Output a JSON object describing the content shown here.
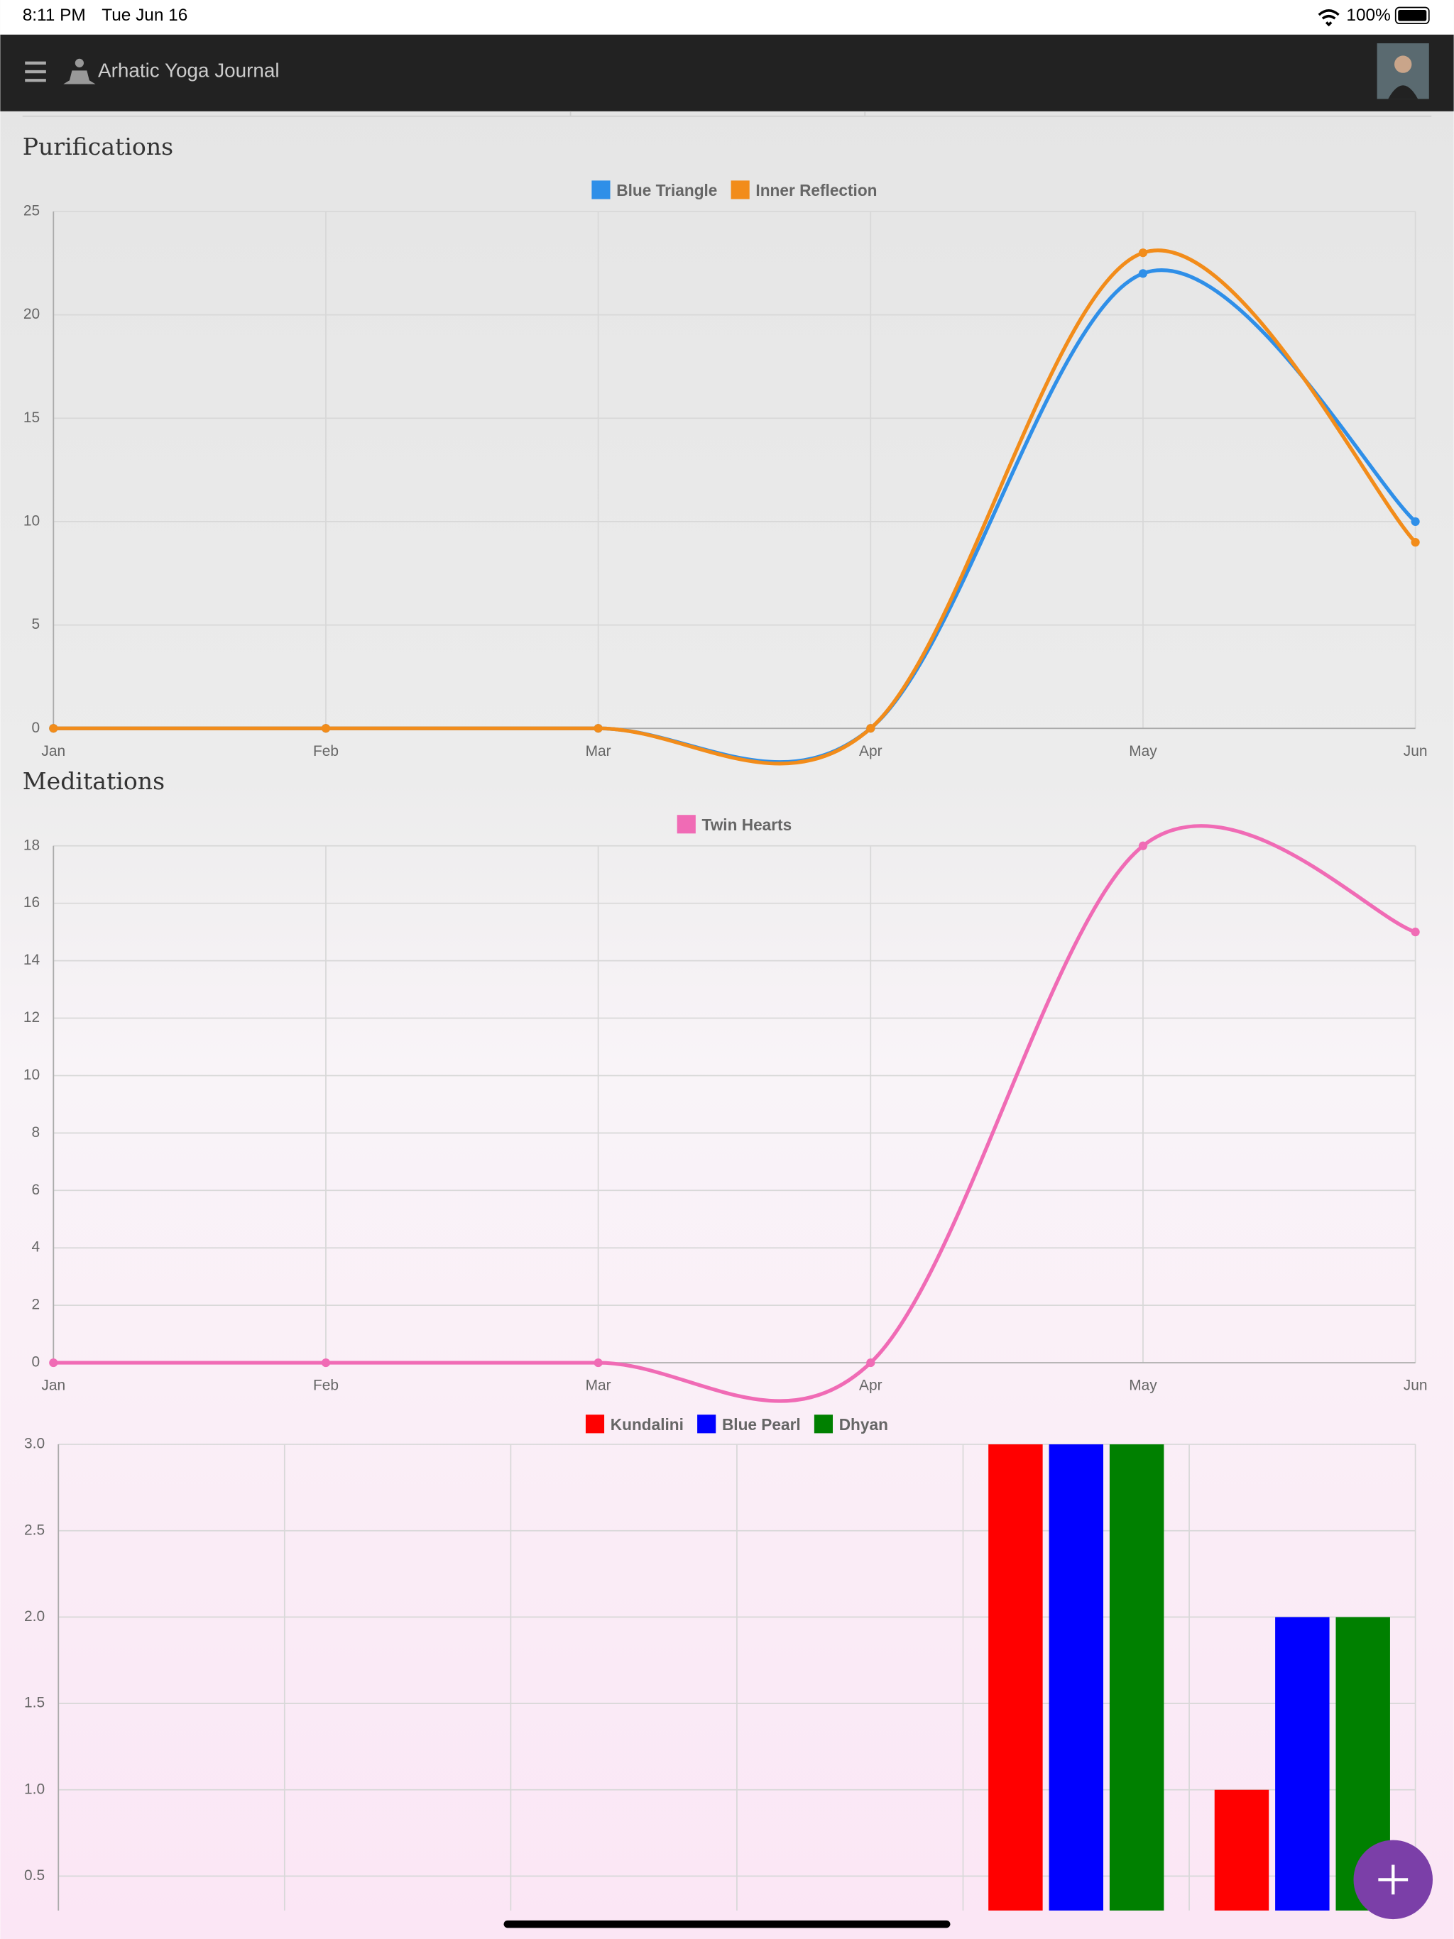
{
  "status_bar": {
    "time": "8:11 PM",
    "date": "Tue Jun 16",
    "battery": "100%"
  },
  "app_bar": {
    "title": "Arhatic Yoga Journal"
  },
  "chart_data": [
    {
      "type": "line",
      "title": "Purifications",
      "categories": [
        "Jan",
        "Feb",
        "Mar",
        "Apr",
        "May",
        "Jun"
      ],
      "series": [
        {
          "name": "Blue Triangle",
          "color": "#2f8fe8",
          "values": [
            0,
            0,
            0,
            0,
            22,
            10
          ]
        },
        {
          "name": "Inner Reflection",
          "color": "#f28c1a",
          "values": [
            0,
            0,
            0,
            0,
            23,
            9
          ]
        }
      ],
      "ylim": [
        0,
        25
      ],
      "yticks": [
        0,
        5,
        10,
        15,
        20,
        25
      ],
      "grid": true
    },
    {
      "type": "line",
      "title": "Meditations",
      "categories": [
        "Jan",
        "Feb",
        "Mar",
        "Apr",
        "May",
        "Jun"
      ],
      "series": [
        {
          "name": "Twin Hearts",
          "color": "#f06bb5",
          "values": [
            0,
            0,
            0,
            0,
            18,
            15
          ]
        }
      ],
      "ylim": [
        0,
        18
      ],
      "yticks": [
        0,
        2,
        4,
        6,
        8,
        10,
        12,
        14,
        16,
        18
      ],
      "grid": true
    },
    {
      "type": "bar",
      "categories": [
        null,
        null,
        null,
        null,
        null,
        null
      ],
      "series": [
        {
          "name": "Kundalini",
          "color": "#ff0000",
          "values": [
            0,
            0,
            0,
            0,
            3,
            1
          ]
        },
        {
          "name": "Blue Pearl",
          "color": "#0000ff",
          "values": [
            0,
            0,
            0,
            0,
            3,
            2
          ]
        },
        {
          "name": "Dhyan",
          "color": "#008000",
          "values": [
            0,
            0,
            0,
            0,
            3,
            2
          ]
        }
      ],
      "ylim": [
        0,
        3
      ],
      "yticks": [
        {
          "value": 0.5,
          "label": "0.5"
        },
        {
          "value": 1,
          "label": "1.0"
        },
        {
          "value": 1.5,
          "label": "1.5"
        },
        {
          "value": 2,
          "label": "2.0"
        },
        {
          "value": 2.5,
          "label": "2.5"
        },
        {
          "value": 3,
          "label": "3.0"
        }
      ],
      "grid": true
    }
  ]
}
